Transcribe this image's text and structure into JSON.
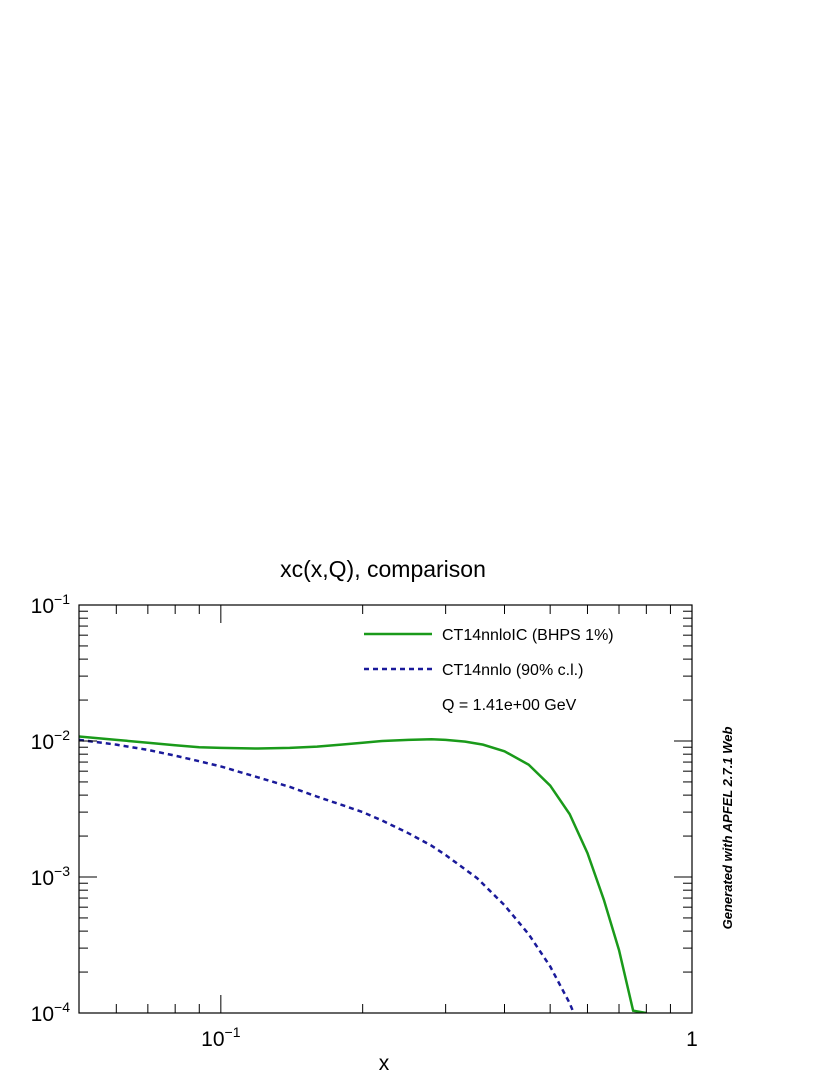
{
  "chart_data": {
    "type": "line",
    "title": "xc(x,Q), comparison",
    "xlabel": "x",
    "ylabel": "",
    "xscale": "log",
    "yscale": "log",
    "xlim": [
      0.05,
      1
    ],
    "ylim": [
      0.0001,
      0.1
    ],
    "x_ticks": [
      {
        "value": 0.1,
        "base": "10",
        "exp": "−1"
      },
      {
        "value": 1,
        "base": "1",
        "exp": ""
      }
    ],
    "y_ticks": [
      {
        "value": 0.1,
        "base": "10",
        "exp": "−1"
      },
      {
        "value": 0.01,
        "base": "10",
        "exp": "−2"
      },
      {
        "value": 0.001,
        "base": "10",
        "exp": "−3"
      },
      {
        "value": 0.0001,
        "base": "10",
        "exp": "−4"
      }
    ],
    "grid": false,
    "legend_position": "top-right",
    "series": [
      {
        "name": "CT14nnloIC (BHPS 1%)",
        "color": "#1a9a1a",
        "style": "solid",
        "x": [
          0.05,
          0.06,
          0.07,
          0.08,
          0.09,
          0.1,
          0.12,
          0.14,
          0.16,
          0.18,
          0.2,
          0.22,
          0.25,
          0.28,
          0.3,
          0.33,
          0.36,
          0.4,
          0.45,
          0.5,
          0.55,
          0.6,
          0.65,
          0.7,
          0.75,
          0.8
        ],
        "y": [
          0.0108,
          0.0102,
          0.0097,
          0.0093,
          0.009,
          0.0089,
          0.0088,
          0.0089,
          0.0091,
          0.0094,
          0.0097,
          0.01,
          0.0102,
          0.0103,
          0.0102,
          0.0099,
          0.0094,
          0.0084,
          0.0067,
          0.0047,
          0.0029,
          0.0015,
          0.00068,
          0.00029,
          0.000104,
          0.0001
        ]
      },
      {
        "name": "CT14nnlo (90% c.l.)",
        "color": "#1a1a9a",
        "style": "dashed",
        "x": [
          0.05,
          0.06,
          0.07,
          0.08,
          0.09,
          0.1,
          0.12,
          0.14,
          0.16,
          0.18,
          0.2,
          0.22,
          0.25,
          0.28,
          0.3,
          0.35,
          0.4,
          0.45,
          0.5,
          0.55,
          0.6,
          0.62
        ],
        "y": [
          0.0102,
          0.0094,
          0.0086,
          0.0078,
          0.0071,
          0.0065,
          0.0054,
          0.0046,
          0.0039,
          0.0034,
          0.003,
          0.0026,
          0.0021,
          0.0017,
          0.00145,
          0.00098,
          0.00062,
          0.00038,
          0.00022,
          0.000118,
          5.7e-05,
          0.0001
        ]
      }
    ],
    "annotation": "Q = 1.41e+00 GeV",
    "side_note": "Generated with APFEL 2.7.1 Web"
  }
}
